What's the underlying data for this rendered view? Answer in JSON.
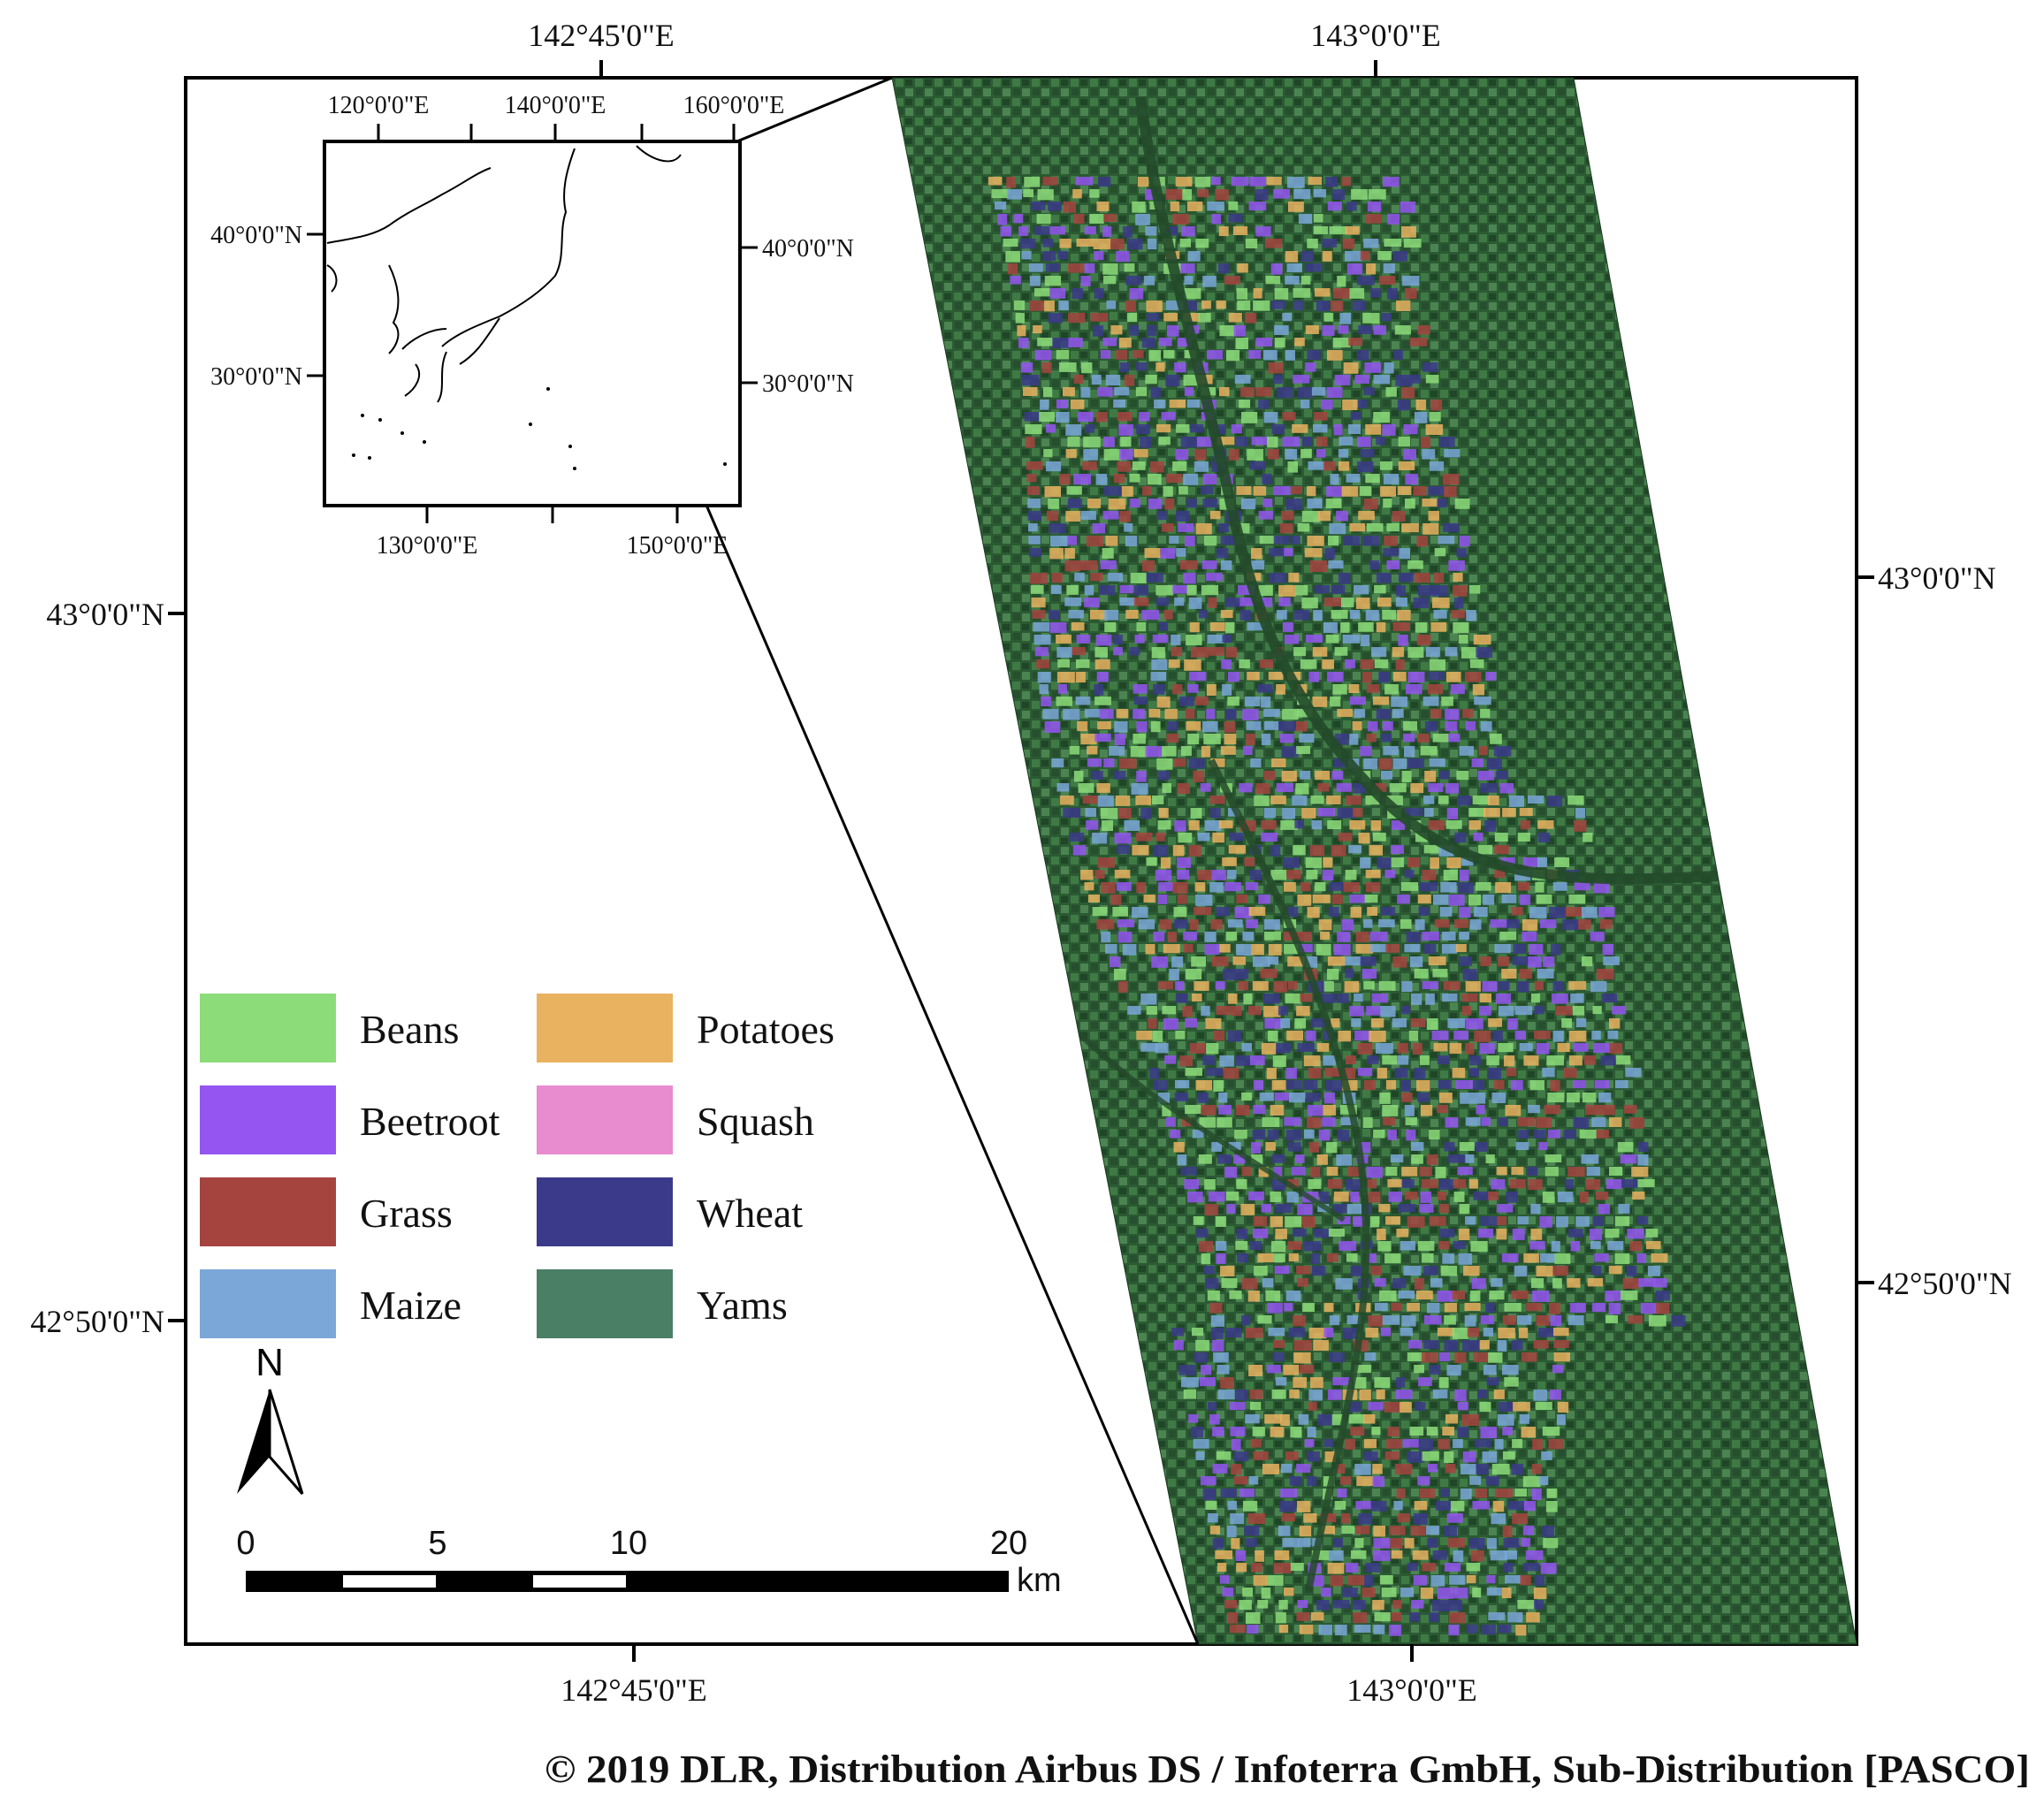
{
  "map": {
    "outer_axis_labels": {
      "top": [
        "142°45'0\"E",
        "143°0'0\"E"
      ],
      "bottom": [
        "142°45'0\"E",
        "143°0'0\"E"
      ],
      "left": [
        "43°0'0\"N",
        "42°50'0\"N"
      ],
      "right": [
        "43°0'0\"N",
        "42°50'0\"N"
      ]
    },
    "inset": {
      "top_labels": [
        "120°0'0\"E",
        "140°0'0\"E",
        "160°0'0\"E"
      ],
      "bottom_labels": [
        "130°0'0\"E",
        "150°0'0\"E"
      ],
      "left_labels": [
        "40°0'0\"N",
        "30°0'0\"N"
      ],
      "right_labels": [
        "40°0'0\"N",
        "30°0'0\"N"
      ]
    },
    "legend": [
      {
        "label": "Beans",
        "color": "#8ddc7a"
      },
      {
        "label": "Potatoes",
        "color": "#e9b260"
      },
      {
        "label": "Beetroot",
        "color": "#9455f1"
      },
      {
        "label": "Squash",
        "color": "#e88bcf"
      },
      {
        "label": "Grass",
        "color": "#a5443f"
      },
      {
        "label": "Wheat",
        "color": "#3b3a8a"
      },
      {
        "label": "Maize",
        "color": "#7aa7d8"
      },
      {
        "label": "Yams",
        "color": "#4a7f66"
      }
    ],
    "north_arrow_label": "N",
    "scale_bar": {
      "ticks": [
        "0",
        "5",
        "10",
        "20"
      ],
      "unit": "km"
    },
    "copyright": "© 2019 DLR, Distribution Airbus DS / Infoterra GmbH, Sub-Distribution [PASCO]"
  }
}
